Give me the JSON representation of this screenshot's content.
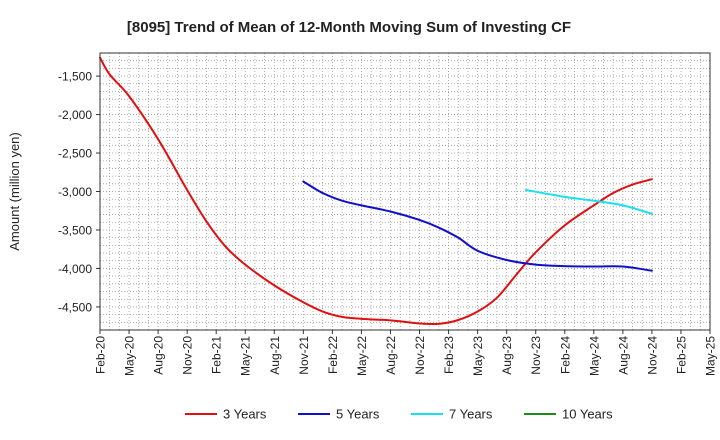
{
  "chart_data": {
    "type": "line",
    "title": "[8095]  Trend of Mean of 12-Month Moving Sum of Investing CF",
    "ylabel": "Amount (million yen)",
    "xlabel": "",
    "ylim": [
      -4800,
      -1200
    ],
    "yticks": [
      -1500,
      -2000,
      -2500,
      -3000,
      -3500,
      -4000,
      -4500
    ],
    "ytick_labels": [
      "-1,500",
      "-2,000",
      "-2,500",
      "-3,000",
      "-3,500",
      "-4,000",
      "-4,500"
    ],
    "x_start": "Feb-20",
    "x_end": "May-25",
    "x_tick_labels": [
      "Feb-20",
      "May-20",
      "Aug-20",
      "Nov-20",
      "Feb-21",
      "May-21",
      "Aug-21",
      "Nov-21",
      "Feb-22",
      "May-22",
      "Aug-22",
      "Nov-22",
      "Feb-23",
      "May-23",
      "Aug-23",
      "Nov-23",
      "Feb-24",
      "May-24",
      "Aug-24",
      "Nov-24",
      "Feb-25",
      "May-25"
    ],
    "grid": true,
    "legend_position": "bottom",
    "series": [
      {
        "name": "3 Years",
        "color": "#e01010",
        "points": [
          [
            "Feb-20",
            -1260
          ],
          [
            "Mar-20",
            -1480
          ],
          [
            "May-20",
            -1760
          ],
          [
            "Aug-20",
            -2320
          ],
          [
            "Nov-20",
            -2980
          ],
          [
            "Jan-21",
            -3390
          ],
          [
            "Mar-21",
            -3720
          ],
          [
            "May-21",
            -3950
          ],
          [
            "Aug-21",
            -4220
          ],
          [
            "Nov-21",
            -4440
          ],
          [
            "Jan-22",
            -4560
          ],
          [
            "Mar-22",
            -4630
          ],
          [
            "May-22",
            -4655
          ],
          [
            "Aug-22",
            -4675
          ],
          [
            "Nov-22",
            -4715
          ],
          [
            "Jan-23",
            -4720
          ],
          [
            "Mar-23",
            -4670
          ],
          [
            "May-23",
            -4560
          ],
          [
            "Jul-23",
            -4380
          ],
          [
            "Sep-23",
            -4080
          ],
          [
            "Nov-23",
            -3790
          ],
          [
            "Feb-24",
            -3440
          ],
          [
            "May-24",
            -3180
          ],
          [
            "Jul-24",
            -3020
          ],
          [
            "Sep-24",
            -2910
          ],
          [
            "Nov-24",
            -2840
          ]
        ]
      },
      {
        "name": "5 Years",
        "color": "#1010c8",
        "points": [
          [
            "Nov-21",
            -2870
          ],
          [
            "Jan-22",
            -3020
          ],
          [
            "Mar-22",
            -3120
          ],
          [
            "May-22",
            -3180
          ],
          [
            "Aug-22",
            -3260
          ],
          [
            "Nov-22",
            -3370
          ],
          [
            "Jan-23",
            -3470
          ],
          [
            "Mar-23",
            -3600
          ],
          [
            "May-23",
            -3770
          ],
          [
            "Aug-23",
            -3890
          ],
          [
            "Nov-23",
            -3950
          ],
          [
            "Feb-24",
            -3970
          ],
          [
            "May-24",
            -3975
          ],
          [
            "Aug-24",
            -3975
          ],
          [
            "Nov-24",
            -4030
          ]
        ]
      },
      {
        "name": "7 Years",
        "color": "#19e0f0",
        "points": [
          [
            "Oct-23",
            -2980
          ],
          [
            "Feb-24",
            -3070
          ],
          [
            "May-24",
            -3120
          ],
          [
            "Aug-24",
            -3180
          ],
          [
            "Nov-24",
            -3290
          ]
        ]
      },
      {
        "name": "10 Years",
        "color": "#1e8a1e",
        "points": []
      }
    ]
  }
}
